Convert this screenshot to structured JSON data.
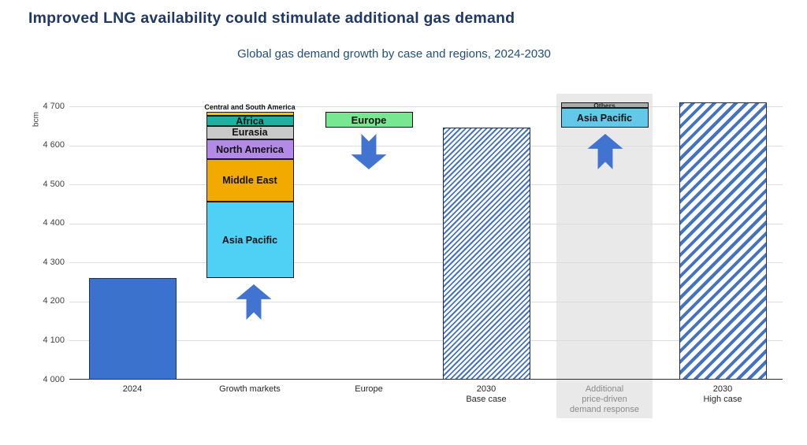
{
  "title": "Improved LNG availability could stimulate additional gas demand",
  "subtitle": "Global gas demand growth by case and regions, 2024-2030",
  "y_axis_unit": "bcm",
  "colors": {
    "title": "#1f3864",
    "subtitle": "#1f4e79",
    "bar_2024_fill": "#3b72ce",
    "bar_2024_border": "#17375e",
    "hatch_stripe": "#4472c4",
    "hatch_border": "#1c2f4e",
    "europe_fill": "#77e891",
    "arrow": "#4173d0",
    "band": "#e9e9e9",
    "gridline": "#dcdcdc",
    "axis_line": "#2b2b2b",
    "tick_text": "#3f3f3f",
    "xlabel_text": "#262626",
    "xlabel_gray": "#8a8a8a"
  },
  "chart_data": {
    "type": "bar",
    "subtype": "waterfall",
    "title": "Global gas demand growth by case and regions, 2024-2030",
    "ylabel": "bcm",
    "ylim": [
      4000,
      4700
    ],
    "ytick_step": 100,
    "ytick_labels": [
      "4 700",
      "4 600",
      "4 500",
      "4 400",
      "4 300",
      "4 200",
      "4 100",
      "4 000"
    ],
    "grid": true,
    "legend_position": "none",
    "columns": [
      {
        "id": "2024",
        "label_lines": [
          "2024"
        ],
        "kind": "solid",
        "value": 4260
      },
      {
        "id": "growth-markets",
        "label_lines": [
          "Growth markets"
        ],
        "kind": "stack",
        "start": 4260,
        "end": 4685,
        "arrow": "up",
        "segments": [
          {
            "name": "Asia Pacific",
            "value": 195,
            "color": "#4ed1f5"
          },
          {
            "name": "Middle East",
            "value": 110,
            "color": "#f2a900"
          },
          {
            "name": "North America",
            "value": 50,
            "color": "#b38ae8"
          },
          {
            "name": "Eurasia",
            "value": 35,
            "color": "#c9c9c9"
          },
          {
            "name": "Africa",
            "value": 25,
            "color": "#1fb1a0"
          },
          {
            "name": "Central and South America",
            "value": 10,
            "color": "#eec900",
            "label_outside": true
          }
        ]
      },
      {
        "id": "europe",
        "label_lines": [
          "Europe"
        ],
        "kind": "float-box",
        "from": 4685,
        "to": 4645,
        "value": -40,
        "box_label": "Europe",
        "arrow": "down"
      },
      {
        "id": "2030-base",
        "label_lines": [
          "2030",
          "Base case"
        ],
        "kind": "hatched",
        "value": 4645,
        "hatch": "fine"
      },
      {
        "id": "additional-price-response",
        "label_lines": [
          "Additional",
          "price-driven",
          "demand response"
        ],
        "kind": "stack",
        "start": 4645,
        "end": 4710,
        "arrow": "up",
        "band": true,
        "gray_label": true,
        "segments": [
          {
            "name": "Asia Pacific",
            "value": 50,
            "color": "#63c8e9"
          },
          {
            "name": "Others",
            "value": 15,
            "color": "#ababab",
            "small": true
          }
        ]
      },
      {
        "id": "2030-high",
        "label_lines": [
          "2030",
          "High case"
        ],
        "kind": "hatched",
        "value": 4710,
        "hatch": "coarse"
      }
    ]
  }
}
